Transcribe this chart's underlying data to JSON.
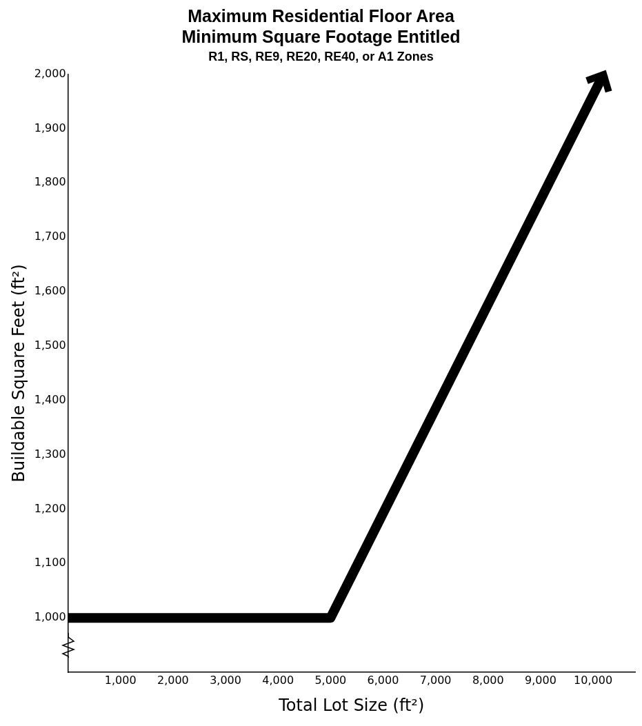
{
  "chart_data": {
    "type": "line",
    "title": "Maximum Residential Floor Area\nMinimum Square Footage Entitled",
    "subtitle": "R1, RS, RE9, RE20, RE40, or A1 Zones",
    "xlabel": "Total Lot Size (ft²)",
    "ylabel": "Buildable Square Feet (ft²)",
    "series": [
      {
        "color": "#000000",
        "x": [
          0,
          5000,
          10200
        ],
        "values": [
          1000,
          1000,
          2000
        ]
      }
    ],
    "xlim": [
      0,
      10800
    ],
    "xticks": [
      {
        "value": 1000,
        "label": "1,000"
      },
      {
        "value": 2000,
        "label": "2,000"
      },
      {
        "value": 3000,
        "label": "3,000"
      },
      {
        "value": 4000,
        "label": "4,000"
      },
      {
        "value": 5000,
        "label": "5,000"
      },
      {
        "value": 6000,
        "label": "6,000"
      },
      {
        "value": 7000,
        "label": "7,000"
      },
      {
        "value": 8000,
        "label": "8,000"
      },
      {
        "value": 9000,
        "label": "9,000"
      },
      {
        "value": 10000,
        "label": "10,000"
      }
    ],
    "ylim": [
      900,
      2000
    ],
    "yticks": [
      {
        "value": 1000,
        "label": "1,000"
      },
      {
        "value": 1100,
        "label": "1,100"
      },
      {
        "value": 1200,
        "label": "1,200"
      },
      {
        "value": 1300,
        "label": "1,300"
      },
      {
        "value": 1400,
        "label": "1,400"
      },
      {
        "value": 1500,
        "label": "1,500"
      },
      {
        "value": 1600,
        "label": "1,600"
      },
      {
        "value": 1700,
        "label": "1,700"
      },
      {
        "value": 1800,
        "label": "1,800"
      },
      {
        "value": 1900,
        "label": "1,900"
      },
      {
        "value": 2000,
        "label": "2,000"
      }
    ],
    "grid": false,
    "legend": false,
    "marker": "none",
    "line_style": "solid"
  }
}
